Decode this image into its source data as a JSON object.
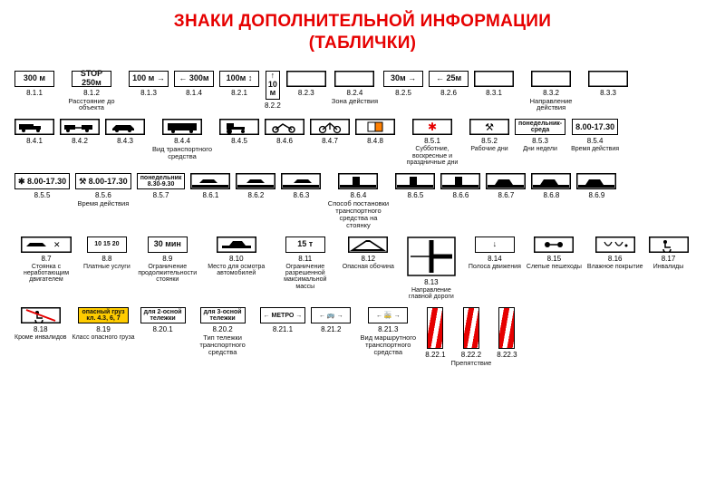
{
  "title_line1": "ЗНАКИ ДОПОЛНИТЕЛЬНОЙ ИНФОРМАЦИИ",
  "title_line2": "(ТАБЛИЧКИ)",
  "colors": {
    "title": "#e60000",
    "border": "#000000",
    "bg": "#ffffff",
    "black": "#000000",
    "yellow": "#ffcc00",
    "red": "#e60000"
  },
  "rows": [
    {
      "id": "r1",
      "items": [
        {
          "code": "8.1.1",
          "plate": "300 м"
        },
        {
          "code": "8.1.2",
          "plate": "STOP\n250м",
          "group_after": "Расстояние до объекта",
          "group_span": 2
        },
        {
          "code": "8.1.3",
          "plate": "100 м",
          "icon": "arrow-r"
        },
        {
          "code": "8.1.4",
          "plate": "300м",
          "icon": "arrow-l"
        },
        {
          "code": "8.2.1",
          "plate": "100м",
          "icon": "arrow-ud"
        },
        {
          "code": "8.2.2",
          "plate": "10\nм",
          "tall": true,
          "icon": "arrow-up"
        },
        {
          "code": "8.2.3",
          "plate": "",
          "tall": true,
          "icon": "arrow-down"
        },
        {
          "code": "8.2.4",
          "plate": "",
          "tall": true,
          "icon": "arrow-ud",
          "group_after": "Зона действия"
        },
        {
          "code": "8.2.5",
          "plate": "30м",
          "icon": "arrow-r"
        },
        {
          "code": "8.2.6",
          "plate": "25м",
          "icon": "arrow-l"
        },
        {
          "code": "8.3.1",
          "plate": "",
          "icon": "arrow-r"
        },
        {
          "code": "8.3.2",
          "plate": "",
          "icon": "arrow-l",
          "group_after": "Направление действия"
        },
        {
          "code": "8.3.3",
          "plate": "",
          "icon": "arrow-lr"
        }
      ]
    },
    {
      "id": "r2",
      "items": [
        {
          "code": "8.4.1",
          "icon": "truck"
        },
        {
          "code": "8.4.2",
          "icon": "trailer"
        },
        {
          "code": "8.4.3",
          "icon": "car"
        },
        {
          "code": "8.4.4",
          "icon": "bus",
          "group_after": "Вид транспортного средства"
        },
        {
          "code": "8.4.5",
          "icon": "tractor"
        },
        {
          "code": "8.4.6",
          "icon": "moto"
        },
        {
          "code": "8.4.7",
          "icon": "bike"
        },
        {
          "code": "8.4.8",
          "icon": "hazard"
        },
        {
          "code": "8.5.1",
          "icon": "red-star",
          "sub": "Субботние, воскресные и праздничные дни"
        },
        {
          "code": "8.5.2",
          "icon": "hammers",
          "sub": "Рабочие дни"
        },
        {
          "code": "8.5.3",
          "plate": "понедельник-\nсреда",
          "small": true,
          "sub": "Дни недели"
        },
        {
          "code": "8.5.4",
          "plate": "8.00-17.30",
          "sub": "Время действия"
        }
      ]
    },
    {
      "id": "r3",
      "items": [
        {
          "code": "8.5.5",
          "plate": "✱ 8.00-17.30"
        },
        {
          "code": "8.5.6",
          "plate": "⚒ 8.00-17.30",
          "group_after": "Время действия"
        },
        {
          "code": "8.5.7",
          "plate": "понедельник\n8.30-9.30",
          "small": true
        },
        {
          "code": "8.6.1",
          "icon": "park1"
        },
        {
          "code": "8.6.2",
          "icon": "park2"
        },
        {
          "code": "8.6.3",
          "icon": "park3"
        },
        {
          "code": "8.6.4",
          "icon": "park4",
          "group_after": "Способ постановки транспортного средства на стоянку"
        },
        {
          "code": "8.6.5",
          "icon": "park5"
        },
        {
          "code": "8.6.6",
          "icon": "park6"
        },
        {
          "code": "8.6.7",
          "icon": "park7"
        },
        {
          "code": "8.6.8",
          "icon": "park8"
        },
        {
          "code": "8.6.9",
          "icon": "park9"
        }
      ]
    },
    {
      "id": "r4",
      "items": [
        {
          "code": "8.7",
          "icon": "engineoff",
          "sub": "Стоянка с неработающим двигателем"
        },
        {
          "code": "8.8",
          "plate": "10 15 20",
          "sub": "Платные услуги",
          "small": true
        },
        {
          "code": "8.9",
          "plate": "30 мин",
          "sub": "Ограничение продолжительности стоянки"
        },
        {
          "code": "8.10",
          "icon": "inspect",
          "sub": "Место для осмотра автомобилей"
        },
        {
          "code": "8.11",
          "plate": "15 т",
          "sub": "Ограничение разрешенной максимальной массы"
        },
        {
          "code": "8.12",
          "icon": "shoulder",
          "sub": "Опасная обочина"
        },
        {
          "code": "8.13",
          "icon": "mainroad",
          "sub": "Направление главной дороги",
          "big": true
        },
        {
          "code": "8.14",
          "plate": "↓",
          "sub": "Полоса движения"
        },
        {
          "code": "8.15",
          "icon": "blind",
          "sub": "Слепые пешеходы"
        },
        {
          "code": "8.16",
          "icon": "wet",
          "sub": "Влажное покрытие"
        },
        {
          "code": "8.17",
          "icon": "disabled",
          "sub": "Инвалиды"
        }
      ]
    },
    {
      "id": "r5",
      "items": [
        {
          "code": "8.18",
          "icon": "no-disabled",
          "sub": "Кроме инвалидов"
        },
        {
          "code": "8.19",
          "plate": "опасный груз\nкл. 4.3, 6, 7",
          "yellow": true,
          "small": true,
          "sub": "Класс опасного груза"
        },
        {
          "code": "8.20.1",
          "plate": "для 2-осной\nтележки",
          "small": true
        },
        {
          "code": "8.20.2",
          "plate": "для 3-осной\nтележки",
          "small": true,
          "group_after": "Тип тележки транспортного средства"
        },
        {
          "code": "8.21.1",
          "plate": "← МЕТРО →",
          "small": true
        },
        {
          "code": "8.21.2",
          "plate": "← 🚌 →",
          "small": true
        },
        {
          "code": "8.21.3",
          "plate": "← 🚋 →",
          "small": true,
          "group_after": "Вид маршрутного транспортного средства"
        },
        {
          "code": "8.22.1",
          "stripe": true
        },
        {
          "code": "8.22.2",
          "stripe": true,
          "group_after": "Препятствие"
        },
        {
          "code": "8.22.3",
          "stripe": true
        }
      ]
    }
  ]
}
